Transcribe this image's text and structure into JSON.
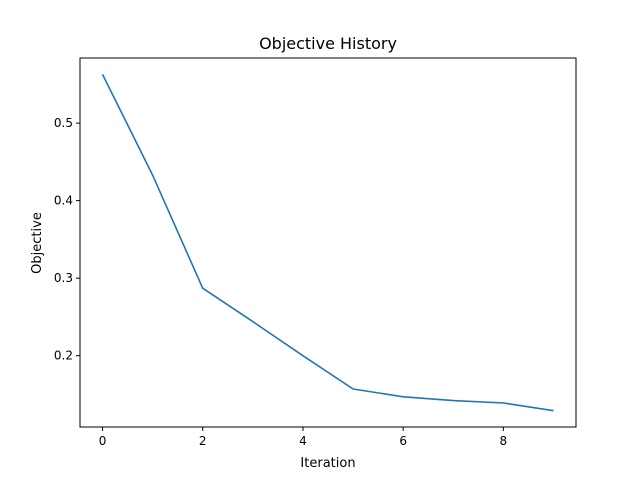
{
  "chart_data": {
    "type": "line",
    "title": "Objective History",
    "xlabel": "Iteration",
    "ylabel": "Objective",
    "xlim": [
      -0.45,
      9.45
    ],
    "ylim": [
      0.108,
      0.584
    ],
    "xticks": [
      0,
      2,
      4,
      6,
      8
    ],
    "xtick_labels": [
      "0",
      "2",
      "4",
      "6",
      "8"
    ],
    "yticks": [
      0.2,
      0.3,
      0.4,
      0.5
    ],
    "ytick_labels": [
      "0.2",
      "0.3",
      "0.4",
      "0.5"
    ],
    "grid": false,
    "series": [
      {
        "color": "#1f77b4",
        "x": [
          0,
          1,
          2,
          3,
          4,
          5,
          6,
          7,
          8,
          9
        ],
        "y": [
          0.563,
          0.433,
          0.287,
          0.244,
          0.2,
          0.157,
          0.147,
          0.142,
          0.139,
          0.129
        ]
      }
    ]
  }
}
